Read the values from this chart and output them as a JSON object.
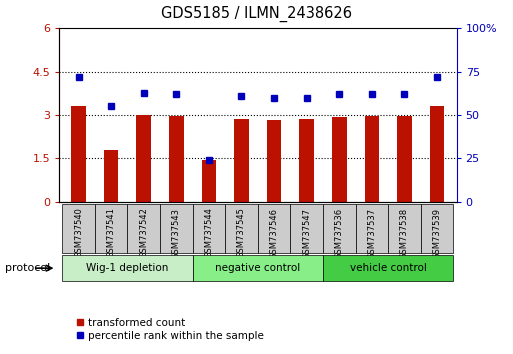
{
  "title": "GDS5185 / ILMN_2438626",
  "samples": [
    "GSM737540",
    "GSM737541",
    "GSM737542",
    "GSM737543",
    "GSM737544",
    "GSM737545",
    "GSM737546",
    "GSM737547",
    "GSM737536",
    "GSM737537",
    "GSM737538",
    "GSM737539"
  ],
  "bar_values": [
    3.3,
    1.8,
    3.0,
    2.95,
    1.45,
    2.87,
    2.82,
    2.88,
    2.92,
    2.95,
    2.97,
    3.3
  ],
  "percentile_values": [
    72,
    55,
    63,
    62,
    24,
    61,
    60,
    60,
    62,
    62,
    62,
    72
  ],
  "bar_color": "#BB1100",
  "percentile_color": "#0000BB",
  "ylim_left": [
    0,
    6
  ],
  "yticks_left": [
    0,
    1.5,
    3.0,
    4.5,
    6.0
  ],
  "ytick_labels_left": [
    "0",
    "1.5",
    "3",
    "4.5",
    "6"
  ],
  "ytick_labels_right": [
    "0",
    "25",
    "50",
    "75",
    "100%"
  ],
  "groups": [
    {
      "label": "Wig-1 depletion",
      "start": 0,
      "end": 3,
      "color": "#C8EEC8"
    },
    {
      "label": "negative control",
      "start": 4,
      "end": 7,
      "color": "#88EE88"
    },
    {
      "label": "vehicle control",
      "start": 8,
      "end": 11,
      "color": "#44CC44"
    }
  ],
  "protocol_label": "protocol",
  "legend_bar_label": "transformed count",
  "legend_pct_label": "percentile rank within the sample",
  "bar_width": 0.45
}
